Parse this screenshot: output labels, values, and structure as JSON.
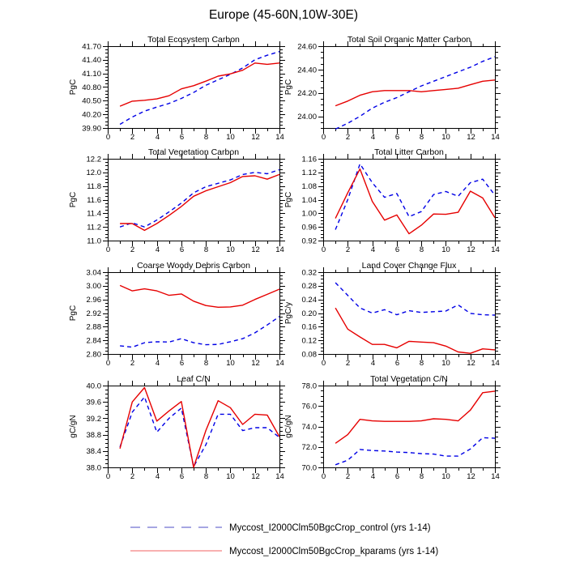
{
  "title": "Europe (45-60N,10W-30E)",
  "colors": {
    "control_line": "#0000e6",
    "kparams_line": "#e60000",
    "axis": "#000000",
    "legend_control": "#7070d0",
    "legend_kparams": "#f38080"
  },
  "legend": {
    "entries": [
      {
        "name": "control",
        "label": "Myccost_I2000Clm50BgcCrop_control (yrs 1-14)",
        "style": "dashed",
        "color": "#7070d0"
      },
      {
        "name": "kparams",
        "label": "Myccost_I2000Clm50BgcCrop_kparams (yrs 1-14)",
        "style": "solid",
        "color": "#f38080"
      }
    ]
  },
  "chart_data": [
    {
      "type": "line",
      "title": "Total Ecosystem Carbon",
      "ylabel": "PgC",
      "xlim": [
        0,
        14
      ],
      "xticks": [
        0,
        2,
        4,
        6,
        8,
        10,
        12,
        14
      ],
      "ylim": [
        39.9,
        41.7
      ],
      "yticks": [
        "39.90",
        "40.20",
        "40.50",
        "40.80",
        "41.10",
        "41.40",
        "41.70"
      ],
      "x": [
        1,
        2,
        3,
        4,
        5,
        6,
        7,
        8,
        9,
        10,
        11,
        12,
        13,
        14
      ],
      "series": [
        {
          "name": "control",
          "values": [
            39.98,
            40.14,
            40.27,
            40.36,
            40.44,
            40.55,
            40.68,
            40.84,
            40.96,
            41.08,
            41.22,
            41.4,
            41.5,
            41.58
          ]
        },
        {
          "name": "kparams",
          "values": [
            40.38,
            40.49,
            40.51,
            40.54,
            40.61,
            40.76,
            40.83,
            40.93,
            41.04,
            41.09,
            41.17,
            41.33,
            41.3,
            41.33
          ]
        }
      ]
    },
    {
      "type": "line",
      "title": "Total Soil Organic Matter Carbon",
      "ylabel": "PgC",
      "xlim": [
        0,
        14
      ],
      "xticks": [
        0,
        2,
        4,
        6,
        8,
        10,
        12,
        14
      ],
      "ylim": [
        23.9,
        24.6
      ],
      "yticks": [
        "24.00",
        "24.20",
        "24.40",
        "24.60"
      ],
      "x": [
        1,
        2,
        3,
        4,
        5,
        6,
        7,
        8,
        9,
        10,
        11,
        12,
        13,
        14
      ],
      "series": [
        {
          "name": "control",
          "values": [
            23.89,
            23.94,
            24.0,
            24.07,
            24.12,
            24.16,
            24.21,
            24.26,
            24.3,
            24.34,
            24.38,
            24.42,
            24.47,
            24.51
          ]
        },
        {
          "name": "kparams",
          "values": [
            24.09,
            24.13,
            24.18,
            24.21,
            24.22,
            24.22,
            24.22,
            24.21,
            24.22,
            24.23,
            24.24,
            24.27,
            24.3,
            24.31
          ]
        }
      ]
    },
    {
      "type": "line",
      "title": "Total Vegetation Carbon",
      "ylabel": "PgC",
      "xlim": [
        0,
        14
      ],
      "xticks": [
        0,
        2,
        4,
        6,
        8,
        10,
        12,
        14
      ],
      "ylim": [
        11.0,
        12.2
      ],
      "yticks": [
        "11.0",
        "11.2",
        "11.4",
        "11.6",
        "11.8",
        "12.0",
        "12.2"
      ],
      "x": [
        1,
        2,
        3,
        4,
        5,
        6,
        7,
        8,
        9,
        10,
        11,
        12,
        13,
        14
      ],
      "series": [
        {
          "name": "control",
          "values": [
            11.2,
            11.26,
            11.2,
            11.3,
            11.42,
            11.55,
            11.7,
            11.79,
            11.84,
            11.89,
            11.97,
            12.0,
            11.98,
            12.04
          ]
        },
        {
          "name": "kparams",
          "values": [
            11.25,
            11.25,
            11.15,
            11.25,
            11.37,
            11.5,
            11.65,
            11.73,
            11.79,
            11.85,
            11.94,
            11.95,
            11.9,
            11.97
          ]
        }
      ]
    },
    {
      "type": "line",
      "title": "Total Litter Carbon",
      "ylabel": "PgC",
      "xlim": [
        0,
        14
      ],
      "xticks": [
        0,
        2,
        4,
        6,
        8,
        10,
        12,
        14
      ],
      "ylim": [
        0.92,
        1.16
      ],
      "yticks": [
        "0.92",
        "0.96",
        "1.00",
        "1.04",
        "1.08",
        "1.12",
        "1.16"
      ],
      "x": [
        1,
        2,
        3,
        4,
        5,
        6,
        7,
        8,
        9,
        10,
        11,
        12,
        13,
        14
      ],
      "series": [
        {
          "name": "control",
          "values": [
            0.952,
            1.04,
            1.145,
            1.09,
            1.047,
            1.058,
            0.99,
            1.005,
            1.055,
            1.064,
            1.05,
            1.09,
            1.1,
            1.053
          ]
        },
        {
          "name": "kparams",
          "values": [
            0.985,
            1.06,
            1.13,
            1.035,
            0.98,
            0.995,
            0.94,
            0.965,
            0.998,
            0.997,
            1.003,
            1.065,
            1.045,
            0.987
          ]
        }
      ]
    },
    {
      "type": "line",
      "title": "Coarse Woody Debris Carbon",
      "ylabel": "PgC",
      "xlim": [
        0,
        14
      ],
      "xticks": [
        0,
        2,
        4,
        6,
        8,
        10,
        12,
        14
      ],
      "ylim": [
        2.8,
        3.04
      ],
      "yticks": [
        "2.80",
        "2.84",
        "2.88",
        "2.92",
        "2.96",
        "3.00",
        "3.04"
      ],
      "x": [
        1,
        2,
        3,
        4,
        5,
        6,
        7,
        8,
        9,
        10,
        11,
        12,
        13,
        14
      ],
      "series": [
        {
          "name": "control",
          "values": [
            2.824,
            2.82,
            2.833,
            2.836,
            2.835,
            2.845,
            2.833,
            2.827,
            2.828,
            2.836,
            2.845,
            2.862,
            2.885,
            2.91
          ]
        },
        {
          "name": "kparams",
          "values": [
            3.001,
            2.985,
            2.991,
            2.985,
            2.972,
            2.976,
            2.955,
            2.942,
            2.937,
            2.938,
            2.943,
            2.96,
            2.975,
            2.99
          ]
        }
      ]
    },
    {
      "type": "line",
      "title": "Land Cover Change Flux",
      "ylabel": "PgC/y",
      "xlim": [
        0,
        14
      ],
      "xticks": [
        0,
        2,
        4,
        6,
        8,
        10,
        12,
        14
      ],
      "ylim": [
        0.08,
        0.32
      ],
      "yticks": [
        "0.08",
        "0.12",
        "0.16",
        "0.20",
        "0.24",
        "0.28",
        "0.32"
      ],
      "x": [
        1,
        2,
        3,
        4,
        5,
        6,
        7,
        8,
        9,
        10,
        11,
        12,
        13,
        14
      ],
      "series": [
        {
          "name": "control",
          "values": [
            0.289,
            0.252,
            0.215,
            0.2,
            0.21,
            0.195,
            0.207,
            0.202,
            0.204,
            0.206,
            0.224,
            0.199,
            0.195,
            0.194
          ]
        },
        {
          "name": "kparams",
          "values": [
            0.215,
            0.153,
            0.13,
            0.108,
            0.108,
            0.098,
            0.117,
            0.115,
            0.113,
            0.103,
            0.086,
            0.082,
            0.095,
            0.092
          ]
        }
      ]
    },
    {
      "type": "line",
      "title": "Leaf C/N",
      "ylabel": "gC/gN",
      "xlim": [
        0,
        14
      ],
      "xticks": [
        0,
        2,
        4,
        6,
        8,
        10,
        12,
        14
      ],
      "ylim": [
        38.0,
        40.0
      ],
      "yticks": [
        "38.0",
        "38.4",
        "38.8",
        "39.2",
        "39.6",
        "40.0"
      ],
      "x": [
        1,
        2,
        3,
        4,
        5,
        6,
        7,
        8,
        9,
        10,
        11,
        12,
        13,
        14
      ],
      "series": [
        {
          "name": "control",
          "values": [
            38.5,
            39.35,
            39.72,
            38.86,
            39.2,
            39.45,
            38.02,
            38.55,
            39.3,
            39.3,
            38.9,
            38.97,
            38.97,
            38.73
          ]
        },
        {
          "name": "kparams",
          "values": [
            38.46,
            39.6,
            39.95,
            39.13,
            39.38,
            39.61,
            38.0,
            38.9,
            39.63,
            39.46,
            39.05,
            39.3,
            39.28,
            38.75
          ]
        }
      ]
    },
    {
      "type": "line",
      "title": "Total Vegetation C/N",
      "ylabel": "gC/gN",
      "xlim": [
        0,
        14
      ],
      "xticks": [
        0,
        2,
        4,
        6,
        8,
        10,
        12,
        14
      ],
      "ylim": [
        70.0,
        78.0
      ],
      "yticks": [
        "70.0",
        "72.0",
        "74.0",
        "76.0",
        "78.0"
      ],
      "x": [
        1,
        2,
        3,
        4,
        5,
        6,
        7,
        8,
        9,
        10,
        11,
        12,
        13,
        14
      ],
      "series": [
        {
          "name": "control",
          "values": [
            70.25,
            70.7,
            71.75,
            71.65,
            71.6,
            71.5,
            71.45,
            71.35,
            71.3,
            71.1,
            71.1,
            71.8,
            72.9,
            72.85
          ]
        },
        {
          "name": "kparams",
          "values": [
            72.35,
            73.2,
            74.7,
            74.55,
            74.5,
            74.5,
            74.5,
            74.55,
            74.75,
            74.7,
            74.55,
            75.6,
            77.3,
            77.45
          ]
        }
      ]
    }
  ]
}
